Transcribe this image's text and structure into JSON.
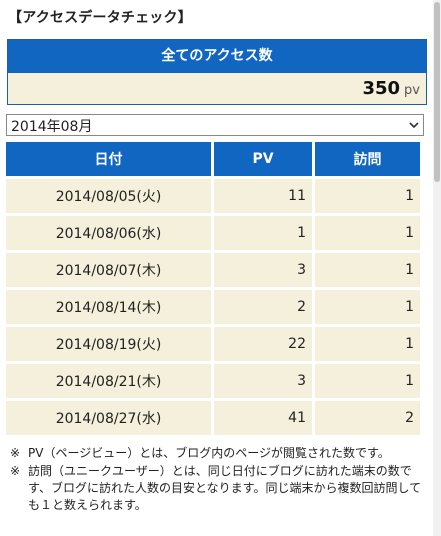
{
  "page": {
    "title": "【アクセスデータチェック】"
  },
  "total": {
    "header": "全てのアクセス数",
    "value": "350",
    "unit": "pv"
  },
  "month_select": {
    "selected": "2014年08月"
  },
  "table": {
    "headers": {
      "date": "日付",
      "pv": "PV",
      "visits": "訪問"
    },
    "rows": [
      {
        "date": "2014/08/05(火)",
        "pv": "11",
        "visits": "1"
      },
      {
        "date": "2014/08/06(水)",
        "pv": "1",
        "visits": "1"
      },
      {
        "date": "2014/08/07(木)",
        "pv": "3",
        "visits": "1"
      },
      {
        "date": "2014/08/14(木)",
        "pv": "2",
        "visits": "1"
      },
      {
        "date": "2014/08/19(火)",
        "pv": "22",
        "visits": "1"
      },
      {
        "date": "2014/08/21(木)",
        "pv": "3",
        "visits": "1"
      },
      {
        "date": "2014/08/27(水)",
        "pv": "41",
        "visits": "2"
      }
    ]
  },
  "notes": [
    {
      "mark": "※",
      "text": "PV（ページビュー）とは、ブログ内のページが閲覧された数です。"
    },
    {
      "mark": "※",
      "text": "訪問（ユニークユーザー）とは、同じ日付にブログに訪れた端末の数です、ブログに訪れた人数の目安となります。同じ端末から複数回訪問しても１と数えられます。"
    }
  ]
}
